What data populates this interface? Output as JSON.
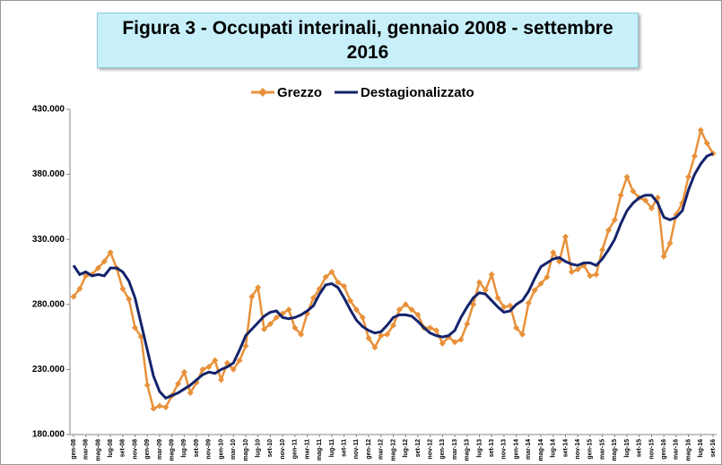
{
  "chart_data": {
    "type": "line",
    "title": "Figura 3 - Occupati interinali, gennaio 2008 - settembre 2016",
    "categories": [
      "gen-08",
      null,
      "mar-08",
      null,
      "mag-08",
      null,
      "lug-08",
      null,
      "set-08",
      null,
      "nov-08",
      null,
      "gen-09",
      null,
      "mar-09",
      null,
      "mag-09",
      null,
      "lug-09",
      null,
      "set-09",
      null,
      "nov-09",
      null,
      "gen-10",
      null,
      "mar-10",
      null,
      "mag-10",
      null,
      "lug-10",
      null,
      "set-10",
      null,
      "nov-10",
      null,
      "gen-11",
      null,
      "mar-11",
      null,
      "mag-11",
      null,
      "lug-11",
      null,
      "set-11",
      null,
      "nov-11",
      null,
      "gen-12",
      null,
      "mar-12",
      null,
      "mag-12",
      null,
      "lug-12",
      null,
      "set-12",
      null,
      "nov-12",
      null,
      "gen-13",
      null,
      "mar-13",
      null,
      "mag-13",
      null,
      "lug-13",
      null,
      "set-13",
      null,
      "nov-13",
      null,
      "gen-14",
      null,
      "mar-14",
      null,
      "mag-14",
      null,
      "lug-14",
      null,
      "set-14",
      null,
      "nov-14",
      null,
      "gen-15",
      null,
      "mar-15",
      null,
      "mag-15",
      null,
      "lug-15",
      null,
      "set-15",
      null,
      "nov-15",
      null,
      "gen-16",
      null,
      "mar-16",
      null,
      "mag-16",
      null,
      "lug-16",
      null,
      "set-16"
    ],
    "series": [
      {
        "name": "Grezzo",
        "color": "#e8913a",
        "marker": "diamond",
        "values": [
          286000,
          292000,
          302000,
          303000,
          308000,
          313000,
          320000,
          308000,
          292000,
          284000,
          262000,
          255000,
          218000,
          200000,
          202000,
          201000,
          210000,
          219000,
          228000,
          212000,
          220000,
          230000,
          232000,
          237000,
          222000,
          235000,
          230000,
          237000,
          248000,
          286000,
          293000,
          261000,
          265000,
          270000,
          273000,
          276000,
          262000,
          257000,
          273000,
          285000,
          292000,
          301000,
          305000,
          297000,
          294000,
          283000,
          276000,
          270000,
          254000,
          247000,
          256000,
          257000,
          264000,
          276000,
          280000,
          276000,
          272000,
          262000,
          262000,
          260000,
          250000,
          255000,
          251000,
          253000,
          265000,
          280000,
          297000,
          291000,
          303000,
          285000,
          278000,
          279000,
          262000,
          257000,
          281000,
          291000,
          296000,
          301000,
          320000,
          313000,
          332000,
          305000,
          307000,
          310000,
          302000,
          303000,
          322000,
          337000,
          345000,
          364000,
          378000,
          367000,
          362000,
          360000,
          354000,
          362000,
          317000,
          327000,
          349000,
          358000,
          378000,
          394000,
          414000,
          404000,
          396000
        ]
      },
      {
        "name": "Destagionalizzato",
        "color": "#14246b",
        "values": [
          310000,
          303000,
          305000,
          302000,
          303000,
          302000,
          308000,
          308000,
          305000,
          298000,
          285000,
          265000,
          245000,
          225000,
          213000,
          208000,
          210000,
          212000,
          215000,
          218000,
          222000,
          226000,
          228000,
          227000,
          230000,
          232000,
          235000,
          245000,
          256000,
          261000,
          266000,
          271000,
          274000,
          275000,
          270000,
          269000,
          270000,
          272000,
          275000,
          279000,
          288000,
          295000,
          296000,
          293000,
          285000,
          276000,
          268000,
          263000,
          260000,
          258000,
          259000,
          264000,
          270000,
          272000,
          272000,
          271000,
          267000,
          262000,
          258000,
          256000,
          255000,
          256000,
          260000,
          270000,
          278000,
          285000,
          289000,
          288000,
          283000,
          278000,
          274000,
          275000,
          280000,
          283000,
          290000,
          300000,
          309000,
          312000,
          315000,
          316000,
          313000,
          311000,
          310000,
          312000,
          312000,
          310000,
          315000,
          322000,
          330000,
          342000,
          352000,
          358000,
          362000,
          364000,
          364000,
          358000,
          347000,
          345000,
          347000,
          352000,
          368000,
          380000,
          388000,
          394000,
          396000
        ]
      }
    ],
    "ylim": [
      180000,
      430000
    ],
    "yticks": [
      {
        "value": 180000,
        "label": "180.000"
      },
      {
        "value": 230000,
        "label": "230.000"
      },
      {
        "value": 280000,
        "label": "280.000"
      },
      {
        "value": 330000,
        "label": "330.000"
      },
      {
        "value": 380000,
        "label": "380.000"
      },
      {
        "value": 430000,
        "label": "430.000"
      }
    ],
    "grid": false,
    "legend": "top"
  }
}
